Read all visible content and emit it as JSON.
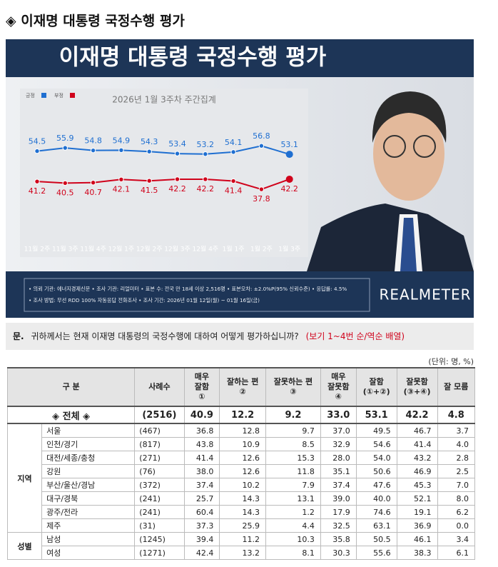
{
  "title": "◈ 이재명 대통령 국정수행 평가",
  "banner": "이재명 대통령 국정수행 평가",
  "chart_data": {
    "type": "line",
    "subtitle": "2026년 1월 3주차 주간집계",
    "categories": [
      "11월 2주",
      "11월 3주",
      "11월 4주",
      "12월 1주",
      "12월 2주",
      "12월 3주",
      "12월 4주",
      "1월 1주",
      "1월 2주",
      "1월 3주"
    ],
    "series": [
      {
        "name": "긍정",
        "color": "#1f6fd1",
        "values": [
          54.5,
          55.9,
          54.8,
          54.9,
          54.3,
          53.4,
          53.2,
          54.1,
          56.8,
          53.1
        ]
      },
      {
        "name": "부정",
        "color": "#d0021b",
        "values": [
          41.2,
          40.5,
          40.7,
          42.1,
          41.5,
          42.2,
          42.2,
          41.4,
          37.8,
          42.2
        ]
      }
    ],
    "ylim": [
      20,
      70
    ]
  },
  "notes": [
    "• 의뢰 기관: 에너지경제신문 • 조사 기관: 리얼미터 • 표본 수: 전국 만 18세 이상 2,516명 • 표본오차: ±2.0%P(95% 신뢰수준) • 응답률: 4.5%",
    "• 조사 방법: 무선 RDD 100% 자동응답 전화조사 • 조사 기간: 2026년 01월 12일(월) ~ 01월 16일(금)"
  ],
  "logo": "REALMETER",
  "question": {
    "prefix": "문.",
    "text": "귀하께서는 현재 이재명 대통령의 국정수행에 대하여 어떻게 평가하십니까?",
    "note": "(보기 1~4번 순/역순 배열)"
  },
  "unit": "(단위: 명, %)",
  "table": {
    "header": [
      [
        "구 분"
      ],
      [
        "사례수"
      ],
      [
        "매우",
        "잘함",
        "①"
      ],
      [
        "잘하는 편",
        "②"
      ],
      [
        "잘못하는 편",
        "③"
      ],
      [
        "매우",
        "잘못함",
        "④"
      ],
      [
        "잘함",
        "(①+②)"
      ],
      [
        "잘못함",
        "(③+④)"
      ],
      [
        "잘 모름"
      ]
    ],
    "total": {
      "label": "◈ 전체 ◈",
      "n": "(2516)",
      "values": [
        "40.9",
        "12.2",
        "9.2",
        "33.0",
        "53.1",
        "42.2",
        "4.8"
      ]
    },
    "groups": [
      {
        "name": "지역",
        "rows": [
          {
            "label": "서울",
            "n": "(467)",
            "values": [
              "36.8",
              "12.8",
              "9.7",
              "37.0",
              "49.5",
              "46.7",
              "3.7"
            ]
          },
          {
            "label": "인천/경기",
            "n": "(817)",
            "values": [
              "43.8",
              "10.9",
              "8.5",
              "32.9",
              "54.6",
              "41.4",
              "4.0"
            ]
          },
          {
            "label": "대전/세종/충청",
            "n": "(271)",
            "values": [
              "41.4",
              "12.6",
              "15.3",
              "28.0",
              "54.0",
              "43.2",
              "2.8"
            ]
          },
          {
            "label": "강원",
            "n": "(76)",
            "values": [
              "38.0",
              "12.6",
              "11.8",
              "35.1",
              "50.6",
              "46.9",
              "2.5"
            ]
          },
          {
            "label": "부산/울산/경남",
            "n": "(372)",
            "values": [
              "37.4",
              "10.2",
              "7.9",
              "37.4",
              "47.6",
              "45.3",
              "7.0"
            ]
          },
          {
            "label": "대구/경북",
            "n": "(241)",
            "values": [
              "25.7",
              "14.3",
              "13.1",
              "39.0",
              "40.0",
              "52.1",
              "8.0"
            ]
          },
          {
            "label": "광주/전라",
            "n": "(241)",
            "values": [
              "60.4",
              "14.3",
              "1.2",
              "17.9",
              "74.6",
              "19.1",
              "6.2"
            ]
          },
          {
            "label": "제주",
            "n": "(31)",
            "values": [
              "37.3",
              "25.9",
              "4.4",
              "32.5",
              "63.1",
              "36.9",
              "0.0"
            ]
          }
        ]
      },
      {
        "name": "성별",
        "rows": [
          {
            "label": "남성",
            "n": "(1245)",
            "values": [
              "39.4",
              "11.2",
              "10.3",
              "35.8",
              "50.5",
              "46.1",
              "3.4"
            ]
          },
          {
            "label": "여성",
            "n": "(1271)",
            "values": [
              "42.4",
              "13.2",
              "8.1",
              "30.3",
              "55.6",
              "38.3",
              "6.1"
            ]
          }
        ]
      }
    ]
  }
}
